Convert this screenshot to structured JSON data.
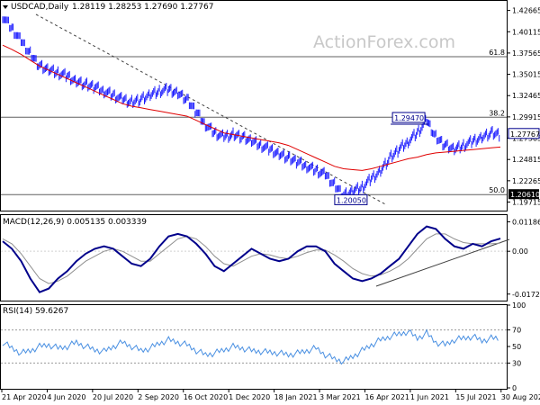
{
  "price_panel": {
    "symbol_label": "USDCAD,Daily",
    "ohlc_label": "1.28119 1.28253 1.27690 1.27767",
    "watermark": "ActionForex.com",
    "last_price_label": "1.27767",
    "high_label": "1.29470",
    "low_label": "1.20050",
    "fib_levels": [
      {
        "label": "61.8",
        "value": 1.37125
      },
      {
        "label": "38.2",
        "value": 1.2987
      },
      {
        "label": "50.0",
        "value": 1.2061
      }
    ],
    "level_labels": [
      {
        "label": "1.20610",
        "value": 1.2061
      }
    ],
    "colors": {
      "price": "#1a1aff",
      "sma": "#e00000",
      "hline": "#606060",
      "trend": "#404040",
      "label_box": "#00008b"
    }
  },
  "macd_panel": {
    "label": "MACD(12,26,9) 0.005135 0.003339",
    "colors": {
      "macd": "#00008b",
      "signal": "#909090"
    }
  },
  "rsi_panel": {
    "label": "RSI(14) 59.6267",
    "colors": {
      "rsi": "#4a90e2",
      "level": "#9a9a9a"
    }
  },
  "chart_data": {
    "type": "line",
    "dates": [
      "21 Apr 2020",
      "4 Jun 2020",
      "20 Jul 2020",
      "2 Sep 2020",
      "16 Oct 2020",
      "1 Dec 2020",
      "18 Jan 2021",
      "3 Mar 2021",
      "16 Apr 2021",
      "1 Jun 2021",
      "15 Jul 2021",
      "30 Aug 2021"
    ],
    "price": {
      "y_ticks": [
        1.42665,
        1.40115,
        1.37565,
        1.35015,
        1.32465,
        1.29915,
        1.27365,
        1.24815,
        1.22265,
        1.19715
      ],
      "ylim": [
        1.188,
        1.437
      ],
      "series": [
        {
          "name": "Price",
          "values": [
            1.42,
            1.405,
            1.39,
            1.375,
            1.36,
            1.355,
            1.352,
            1.348,
            1.342,
            1.338,
            1.335,
            1.33,
            1.325,
            1.32,
            1.317,
            1.32,
            1.325,
            1.33,
            1.332,
            1.328,
            1.32,
            1.305,
            1.29,
            1.28,
            1.275,
            1.278,
            1.275,
            1.27,
            1.265,
            1.26,
            1.255,
            1.25,
            1.245,
            1.24,
            1.235,
            1.23,
            1.218,
            1.205,
            1.21,
            1.215,
            1.225,
            1.235,
            1.25,
            1.26,
            1.27,
            1.28,
            1.2947,
            1.275,
            1.265,
            1.26,
            1.265,
            1.27,
            1.275,
            1.28,
            1.2777
          ]
        },
        {
          "name": "SMA",
          "values": [
            1.385,
            1.38,
            1.374,
            1.367,
            1.36,
            1.355,
            1.35,
            1.345,
            1.34,
            1.335,
            1.33,
            1.325,
            1.32,
            1.315,
            1.312,
            1.31,
            1.308,
            1.306,
            1.304,
            1.302,
            1.3,
            1.295,
            1.29,
            1.285,
            1.28,
            1.278,
            1.276,
            1.274,
            1.272,
            1.27,
            1.268,
            1.265,
            1.26,
            1.255,
            1.25,
            1.245,
            1.24,
            1.237,
            1.236,
            1.235,
            1.237,
            1.24,
            1.243,
            1.246,
            1.249,
            1.251,
            1.254,
            1.256,
            1.257,
            1.258,
            1.259,
            1.26,
            1.261,
            1.262,
            1.263
          ]
        }
      ]
    },
    "macd": {
      "y_ticks": [
        0.011862,
        0.0,
        -0.017238
      ],
      "ylim": [
        -0.0195,
        0.0142
      ],
      "series": [
        {
          "name": "MACD",
          "values": [
            0.004,
            0.001,
            -0.004,
            -0.011,
            -0.0165,
            -0.015,
            -0.011,
            -0.008,
            -0.004,
            -0.001,
            0.001,
            0.002,
            0.001,
            -0.002,
            -0.005,
            -0.006,
            -0.003,
            0.002,
            0.006,
            0.007,
            0.006,
            0.003,
            -0.001,
            -0.006,
            -0.008,
            -0.005,
            -0.002,
            0.001,
            -0.001,
            -0.003,
            -0.004,
            -0.003,
            0.0,
            0.002,
            0.002,
            0.0,
            -0.005,
            -0.008,
            -0.011,
            -0.012,
            -0.011,
            -0.009,
            -0.006,
            -0.003,
            0.002,
            0.007,
            0.01,
            0.009,
            0.005,
            0.002,
            0.001,
            0.003,
            0.002,
            0.004,
            0.0051
          ]
        },
        {
          "name": "Signal",
          "values": [
            0.005,
            0.003,
            -0.001,
            -0.006,
            -0.011,
            -0.013,
            -0.012,
            -0.01,
            -0.007,
            -0.004,
            -0.002,
            0.0,
            0.001,
            0.0,
            -0.002,
            -0.004,
            -0.004,
            -0.001,
            0.002,
            0.005,
            0.006,
            0.005,
            0.002,
            -0.002,
            -0.005,
            -0.006,
            -0.004,
            -0.002,
            -0.001,
            -0.0015,
            -0.0025,
            -0.003,
            -0.002,
            -0.0005,
            0.0005,
            0.0005,
            -0.0015,
            -0.004,
            -0.007,
            -0.009,
            -0.01,
            -0.0095,
            -0.008,
            -0.006,
            -0.003,
            0.001,
            0.005,
            0.007,
            0.007,
            0.005,
            0.0035,
            0.003,
            0.003,
            0.003,
            0.0033
          ]
        }
      ]
    },
    "rsi": {
      "y_ticks": [
        100,
        70,
        50,
        30,
        0
      ],
      "ylim": [
        0,
        100
      ],
      "levels": [
        70,
        30
      ],
      "series": [
        {
          "name": "RSI",
          "values": [
            55,
            48,
            42,
            45,
            50,
            52,
            48,
            50,
            55,
            50,
            46,
            44,
            50,
            55,
            50,
            45,
            48,
            54,
            58,
            55,
            52,
            45,
            40,
            42,
            46,
            50,
            48,
            45,
            44,
            43,
            42,
            40,
            42,
            45,
            48,
            40,
            35,
            32,
            38,
            45,
            52,
            58,
            62,
            65,
            68,
            60,
            66,
            55,
            52,
            58,
            60,
            62,
            57,
            60,
            59.6
          ]
        }
      ]
    }
  }
}
